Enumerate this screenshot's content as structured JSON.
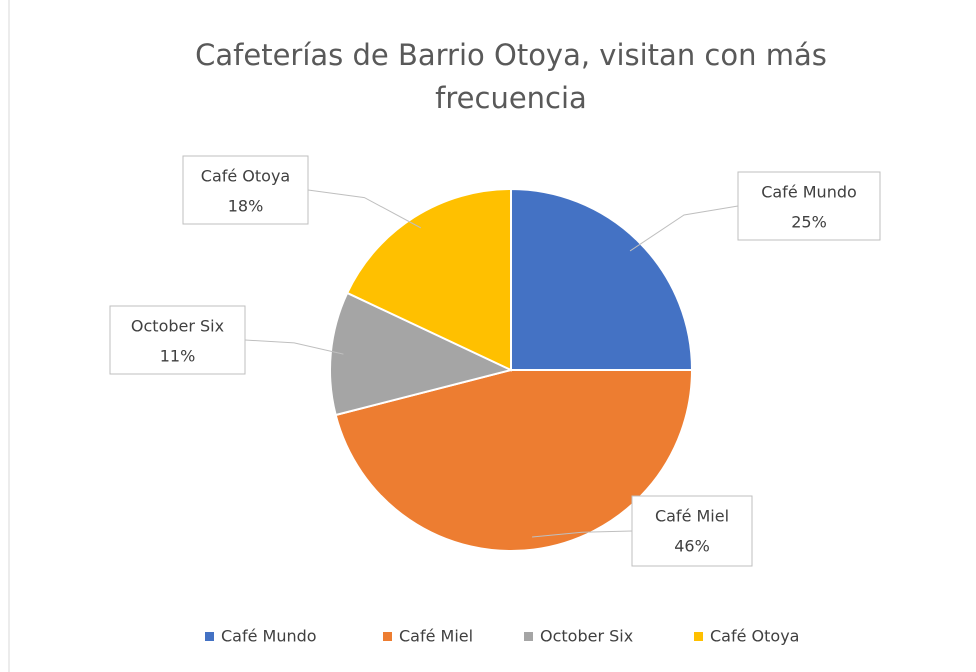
{
  "chart_data": {
    "type": "pie",
    "title": "Cafeterías de Barrio Otoya, visitan con más frecuencia",
    "categories": [
      "Café Mundo",
      "Café Miel",
      "October Six",
      "Café Otoya"
    ],
    "values": [
      25,
      46,
      11,
      18
    ],
    "value_labels": [
      "25%",
      "46%",
      "11%",
      "18%"
    ],
    "colors": [
      "#4472c4",
      "#ed7d31",
      "#a5a5a5",
      "#ffc000"
    ],
    "legend": "bottom"
  }
}
